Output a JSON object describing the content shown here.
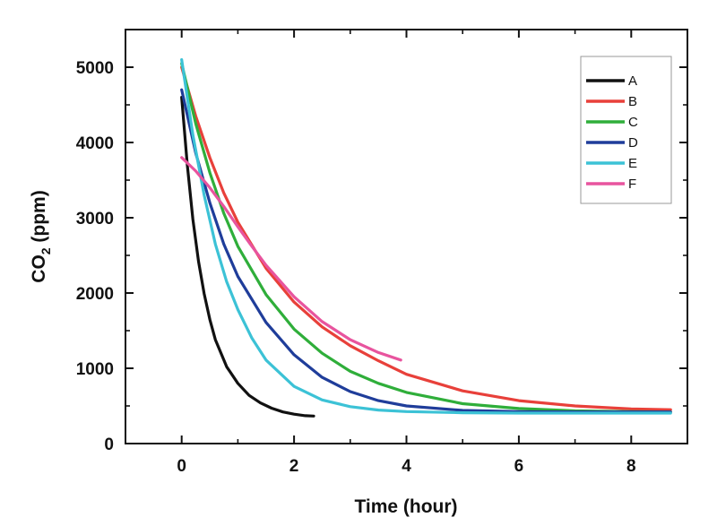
{
  "chart_data": {
    "type": "line",
    "xlabel": "Time (hour)",
    "ylabel_main": "CO",
    "ylabel_sub": "2",
    "ylabel_tail": " (ppm)",
    "xlim": [
      -1,
      9
    ],
    "ylim": [
      0,
      5500
    ],
    "xticks": [
      0,
      2,
      4,
      6,
      8
    ],
    "yticks": [
      0,
      1000,
      2000,
      3000,
      4000,
      5000
    ],
    "grid": false,
    "legend_position": "top-right",
    "series": [
      {
        "name": "A",
        "color": "#111111",
        "x": [
          0,
          0.1,
          0.2,
          0.3,
          0.4,
          0.5,
          0.6,
          0.8,
          1.0,
          1.2,
          1.4,
          1.6,
          1.8,
          2.0,
          2.2,
          2.35
        ],
        "y": [
          4600,
          3700,
          2980,
          2420,
          1990,
          1650,
          1380,
          1020,
          800,
          640,
          540,
          470,
          420,
          390,
          370,
          365
        ]
      },
      {
        "name": "B",
        "color": "#e8403a",
        "x": [
          0,
          0.25,
          0.5,
          0.75,
          1.0,
          1.5,
          2.0,
          2.5,
          3.0,
          3.5,
          4.0,
          5.0,
          6.0,
          7.0,
          8.0,
          8.7
        ],
        "y": [
          5000,
          4350,
          3800,
          3330,
          2940,
          2330,
          1880,
          1550,
          1300,
          1100,
          920,
          700,
          570,
          500,
          460,
          450
        ]
      },
      {
        "name": "C",
        "color": "#2fae3a",
        "x": [
          0,
          0.25,
          0.5,
          0.75,
          1.0,
          1.5,
          2.0,
          2.5,
          3.0,
          3.5,
          4.0,
          5.0,
          6.0,
          7.0,
          8.0,
          8.7
        ],
        "y": [
          5050,
          4250,
          3600,
          3060,
          2620,
          1980,
          1520,
          1200,
          960,
          800,
          680,
          530,
          465,
          435,
          425,
          420
        ]
      },
      {
        "name": "D",
        "color": "#1f3d9a",
        "x": [
          0,
          0.25,
          0.5,
          0.75,
          1.0,
          1.5,
          2.0,
          2.5,
          3.0,
          3.5,
          4.0,
          5.0,
          6.0,
          7.0,
          8.0,
          8.7
        ],
        "y": [
          4700,
          3860,
          3200,
          2650,
          2220,
          1610,
          1180,
          880,
          690,
          570,
          500,
          440,
          425,
          420,
          420,
          420
        ]
      },
      {
        "name": "E",
        "color": "#3cc2d6",
        "x": [
          0,
          0.2,
          0.4,
          0.6,
          0.8,
          1.0,
          1.25,
          1.5,
          2.0,
          2.5,
          3.0,
          3.5,
          4.0,
          5.0,
          6.0,
          7.0,
          8.0,
          8.7
        ],
        "y": [
          5100,
          4100,
          3300,
          2650,
          2150,
          1780,
          1400,
          1110,
          760,
          580,
          490,
          445,
          425,
          410,
          405,
          405,
          405,
          405
        ]
      },
      {
        "name": "F",
        "color": "#e8549e",
        "x": [
          0,
          0.25,
          0.5,
          0.75,
          1.0,
          1.25,
          1.5,
          2.0,
          2.5,
          3.0,
          3.5,
          3.9
        ],
        "y": [
          3800,
          3620,
          3400,
          3150,
          2880,
          2620,
          2370,
          1950,
          1620,
          1380,
          1210,
          1110
        ]
      }
    ]
  }
}
